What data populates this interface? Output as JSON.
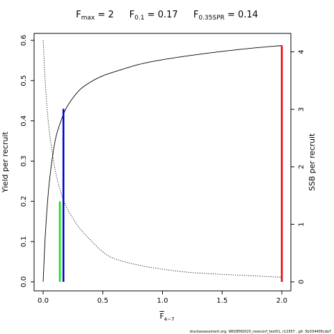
{
  "title": {
    "fmax_symbol": "F",
    "fmax_sub": "max",
    "fmax_value": "= 2",
    "f01_symbol": "F",
    "f01_sub": "0.1",
    "f01_value": "= 0.17",
    "fspr_symbol": "F",
    "fspr_sub": "0.35SPR",
    "fspr_value": "= 0.14"
  },
  "xlabel": {
    "symbol": "F",
    "sub": "4−7"
  },
  "footer": "stockassessment.org, WKDEM2020_newconf_test01, r12357 , git: 5b334405cda7",
  "chart_data": {
    "type": "line",
    "xlim": [
      0,
      2
    ],
    "ylim_left": [
      0,
      0.6
    ],
    "ylim_right": [
      0,
      4.2
    ],
    "ylabel_left": "Yield per recruit",
    "ylabel_right": "SSB per recruit",
    "x_ticks": [
      "0.0",
      "0.5",
      "1.0",
      "1.5",
      "2.0"
    ],
    "x_tick_values": [
      0,
      0.5,
      1,
      1.5,
      2
    ],
    "y_ticks_left": [
      "0.0",
      "0.1",
      "0.2",
      "0.3",
      "0.4",
      "0.5",
      "0.6"
    ],
    "y_tick_values_left": [
      0,
      0.1,
      0.2,
      0.3,
      0.4,
      0.5,
      0.6
    ],
    "y_ticks_right": [
      "0",
      "1",
      "2",
      "3",
      "4"
    ],
    "y_tick_values_right": [
      0,
      1,
      2,
      3,
      4
    ],
    "series": [
      {
        "axis": "left",
        "style": "solid",
        "color": "#000000",
        "x": [
          0,
          0.02,
          0.05,
          0.1,
          0.15,
          0.2,
          0.3,
          0.4,
          0.5,
          0.6,
          0.8,
          1.0,
          1.2,
          1.4,
          1.6,
          1.8,
          2.0
        ],
        "y": [
          0,
          0.125,
          0.243,
          0.35,
          0.4,
          0.435,
          0.475,
          0.497,
          0.512,
          0.522,
          0.54,
          0.552,
          0.561,
          0.569,
          0.576,
          0.582,
          0.587
        ]
      },
      {
        "axis": "right",
        "style": "dotted",
        "color": "#000000",
        "x": [
          0,
          0.02,
          0.05,
          0.1,
          0.15,
          0.2,
          0.3,
          0.4,
          0.5,
          0.6,
          0.8,
          1.0,
          1.2,
          1.4,
          1.6,
          1.8,
          2.0
        ],
        "y": [
          4.2,
          3.4,
          2.65,
          1.95,
          1.55,
          1.28,
          0.95,
          0.72,
          0.52,
          0.4,
          0.29,
          0.22,
          0.17,
          0.14,
          0.12,
          0.1,
          0.08
        ]
      }
    ],
    "ref_lines": [
      {
        "name": "Fmax",
        "x": 2.0,
        "y_top": 0.587,
        "color": "#ee0000"
      },
      {
        "name": "F0.1",
        "x": 0.17,
        "y_top": 0.43,
        "color": "#0000cc"
      },
      {
        "name": "F0.35SPR",
        "x": 0.14,
        "y_top": 0.2,
        "color": "#00ee00"
      }
    ]
  }
}
